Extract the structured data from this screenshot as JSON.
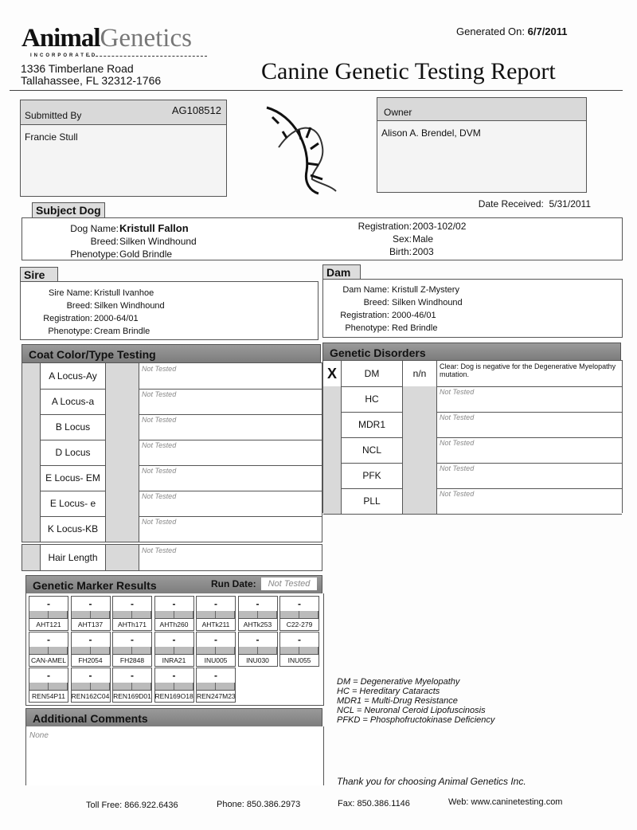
{
  "header": {
    "logo_main": "Animal",
    "logo_accent": "Genetics",
    "logo_sub": "INCORPORATED",
    "address_line1": "1336 Timberlane Road",
    "address_line2": "Tallahassee, FL 32312-1766",
    "generated_label": "Generated On:",
    "generated_value": "6/7/2011",
    "title": "Canine Genetic Testing Report"
  },
  "submitted": {
    "label": "Submitted By",
    "id": "AG108512",
    "name": "Francie Stull"
  },
  "owner": {
    "label": "Owner",
    "name": "Alison A. Brendel, DVM"
  },
  "date_received": {
    "label": "Date Received:",
    "value": "5/31/2011"
  },
  "subject": {
    "tab": "Subject Dog",
    "name_label": "Dog Name:",
    "name": "Kristull Fallon",
    "breed_label": "Breed:",
    "breed": "Silken Windhound",
    "phenotype_label": "Phenotype:",
    "phenotype": "Gold Brindle",
    "registration_label": "Registration:",
    "registration": "2003-102/02",
    "sex_label": "Sex:",
    "sex": "Male",
    "birth_label": "Birth:",
    "birth": "2003"
  },
  "sire": {
    "tab": "Sire",
    "name_label": "Sire Name:",
    "name": "Kristull Ivanhoe",
    "breed_label": "Breed:",
    "breed": "Silken Windhound",
    "registration_label": "Registration:",
    "registration": "2000-64/01",
    "phenotype_label": "Phenotype:",
    "phenotype": "Cream Brindle"
  },
  "dam": {
    "tab": "Dam",
    "name_label": "Dam Name:",
    "name": "Kristull Z-Mystery",
    "breed_label": "Breed:",
    "breed": "Silken Windhound",
    "registration_label": "Registration:",
    "registration": "2000-46/01",
    "phenotype_label": "Phenotype:",
    "phenotype": "Red Brindle"
  },
  "coat": {
    "title": "Coat Color/Type Testing",
    "rows": [
      {
        "label": "A Locus-Ay",
        "note": "Not Tested"
      },
      {
        "label": "A Locus-a",
        "note": "Not Tested"
      },
      {
        "label": "B Locus",
        "note": "Not Tested"
      },
      {
        "label": "D Locus",
        "note": "Not Tested"
      },
      {
        "label": "E Locus- EM",
        "note": "Not Tested"
      },
      {
        "label": "E Locus- e",
        "note": "Not Tested"
      },
      {
        "label": "K Locus-KB",
        "note": "Not Tested"
      }
    ],
    "hair": {
      "label": "Hair Length",
      "note": "Not Tested"
    }
  },
  "disorders": {
    "title": "Genetic Disorders",
    "rows": [
      {
        "mark": "X",
        "label": "DM",
        "result": "n/n",
        "note": "Clear: Dog is negative for the Degenerative Myelopathy mutation."
      },
      {
        "mark": "",
        "label": "HC",
        "result": "",
        "note": "Not Tested"
      },
      {
        "mark": "",
        "label": "MDR1",
        "result": "",
        "note": "Not Tested"
      },
      {
        "mark": "",
        "label": "NCL",
        "result": "",
        "note": "Not Tested"
      },
      {
        "mark": "",
        "label": "PFK",
        "result": "",
        "note": "Not Tested"
      },
      {
        "mark": "",
        "label": "PLL",
        "result": "",
        "note": "Not Tested"
      }
    ]
  },
  "markers": {
    "title": "Genetic Marker Results",
    "run_date_label": "Run Date:",
    "run_date": "Not Tested",
    "items": [
      {
        "name": "AHT121",
        "value": "-"
      },
      {
        "name": "AHT137",
        "value": "-"
      },
      {
        "name": "AHTh171",
        "value": "-"
      },
      {
        "name": "AHTh260",
        "value": "-"
      },
      {
        "name": "AHTk211",
        "value": "-"
      },
      {
        "name": "AHTk253",
        "value": "-"
      },
      {
        "name": "C22-279",
        "value": "-"
      },
      {
        "name": "CAN-AMEL",
        "value": "-"
      },
      {
        "name": "FH2054",
        "value": "-"
      },
      {
        "name": "FH2848",
        "value": "-"
      },
      {
        "name": "INRA21",
        "value": "-"
      },
      {
        "name": "INU005",
        "value": "-"
      },
      {
        "name": "INU030",
        "value": "-"
      },
      {
        "name": "INU055",
        "value": "-"
      },
      {
        "name": "REN54P11",
        "value": "-"
      },
      {
        "name": "REN162C04",
        "value": "-"
      },
      {
        "name": "REN169D01",
        "value": "-"
      },
      {
        "name": "REN169O18",
        "value": "-"
      },
      {
        "name": "REN247M23",
        "value": "-"
      }
    ]
  },
  "comments": {
    "title": "Additional Comments",
    "text": "None"
  },
  "legend": [
    "DM = Degenerative Myelopathy",
    "HC = Hereditary Cataracts",
    "MDR1 = Multi-Drug Resistance",
    "NCL = Neuronal Ceroid Lipofuscinosis",
    "PFKD = Phosphofructokinase Deficiency"
  ],
  "thanks": "Thank you for choosing Animal Genetics Inc.",
  "footer": {
    "tollfree": "Toll Free: 866.922.6436",
    "phone": "Phone: 850.386.2973",
    "fax": "Fax: 850.386.1146",
    "web": "Web: www.caninetesting.com"
  }
}
